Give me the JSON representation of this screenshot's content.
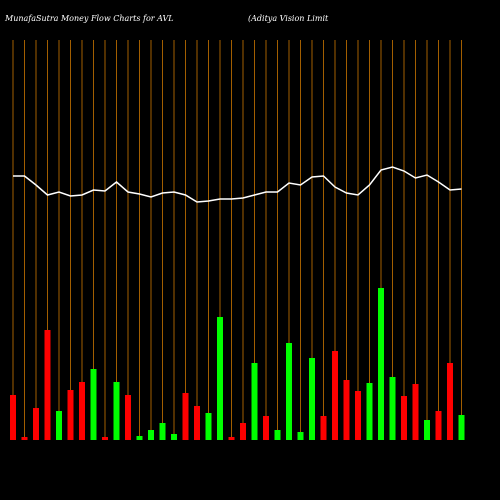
{
  "chart_data": {
    "type": "bar",
    "title": "MunafaSutra  Money  Flow  Charts for AVL",
    "subtitle": "(Aditya  Vision  Limit",
    "categories": [
      null,
      null,
      null,
      null,
      null,
      null,
      null,
      null,
      null,
      null,
      null,
      null,
      null,
      null,
      null,
      null,
      null,
      null,
      null,
      null,
      null,
      null,
      null,
      null,
      null,
      null,
      null,
      null,
      null,
      null,
      null,
      null,
      null,
      null,
      null,
      null,
      null,
      null,
      null,
      null
    ],
    "values": [
      45,
      3,
      32,
      110,
      29,
      50,
      58,
      71,
      3,
      58,
      45,
      4,
      10,
      17,
      6,
      47,
      34,
      27,
      123,
      3,
      17,
      77,
      24,
      10,
      97,
      8,
      82,
      24,
      89,
      60,
      49,
      57,
      152,
      63,
      44,
      56,
      20,
      29,
      77,
      25
    ],
    "colors": [
      "#ff0000",
      "#ff0000",
      "#ff0000",
      "#ff0000",
      "#00ff00",
      "#ff0000",
      "#ff0000",
      "#00ff00",
      "#ff0000",
      "#00ff00",
      "#ff0000",
      "#00ff00",
      "#00ff00",
      "#00ff00",
      "#00ff00",
      "#ff0000",
      "#ff0000",
      "#00ff00",
      "#00ff00",
      "#ff0000",
      "#ff0000",
      "#00ff00",
      "#ff0000",
      "#00ff00",
      "#00ff00",
      "#00ff00",
      "#00ff00",
      "#ff0000",
      "#ff0000",
      "#ff0000",
      "#ff0000",
      "#00ff00",
      "#00ff00",
      "#00ff00",
      "#ff0000",
      "#ff0000",
      "#00ff00",
      "#ff0000",
      "#ff0000",
      "#00ff00"
    ],
    "line": {
      "color": "#ffffff",
      "values": [
        264,
        264,
        255,
        245,
        248,
        244,
        245,
        250,
        249,
        258,
        248,
        246,
        243,
        247,
        248,
        245,
        238,
        239,
        241,
        241,
        242,
        245,
        248,
        248,
        257,
        255,
        263,
        264,
        253,
        247,
        245,
        255,
        270,
        273,
        269,
        262,
        265,
        258,
        250,
        251
      ]
    },
    "ylim": [
      0,
      440
    ],
    "grid_color": "#cc7700",
    "background": "#000000"
  }
}
